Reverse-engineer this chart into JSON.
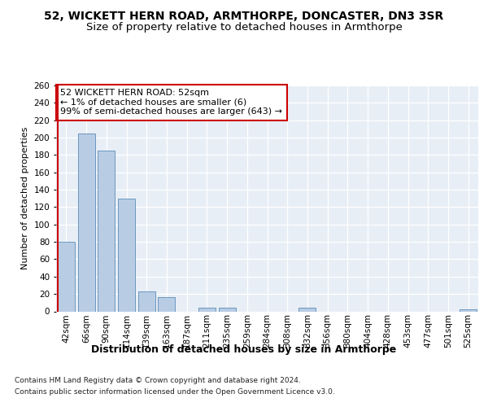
{
  "title_line1": "52, WICKETT HERN ROAD, ARMTHORPE, DONCASTER, DN3 3SR",
  "title_line2": "Size of property relative to detached houses in Armthorpe",
  "xlabel": "Distribution of detached houses by size in Armthorpe",
  "ylabel": "Number of detached properties",
  "categories": [
    "42sqm",
    "66sqm",
    "90sqm",
    "114sqm",
    "139sqm",
    "163sqm",
    "187sqm",
    "211sqm",
    "235sqm",
    "259sqm",
    "284sqm",
    "308sqm",
    "332sqm",
    "356sqm",
    "380sqm",
    "404sqm",
    "428sqm",
    "453sqm",
    "477sqm",
    "501sqm",
    "525sqm"
  ],
  "values": [
    80,
    205,
    185,
    130,
    23,
    16,
    0,
    4,
    4,
    0,
    0,
    0,
    4,
    0,
    0,
    0,
    0,
    0,
    0,
    0,
    2
  ],
  "bar_color": "#b8cce4",
  "bar_edge_color": "#5b8db8",
  "highlight_line_color": "#cc0000",
  "annotation_box_text": "52 WICKETT HERN ROAD: 52sqm\n← 1% of detached houses are smaller (6)\n99% of semi-detached houses are larger (643) →",
  "annotation_box_color": "#cc0000",
  "ylim": [
    0,
    260
  ],
  "footer_line1": "Contains HM Land Registry data © Crown copyright and database right 2024.",
  "footer_line2": "Contains public sector information licensed under the Open Government Licence v3.0.",
  "bg_color": "#e8eef6",
  "fig_bg_color": "#ffffff",
  "title_fontsize": 10,
  "subtitle_fontsize": 9.5,
  "xlabel_fontsize": 9,
  "ylabel_fontsize": 8,
  "tick_fontsize": 7.5,
  "annotation_fontsize": 8,
  "footer_fontsize": 6.5
}
